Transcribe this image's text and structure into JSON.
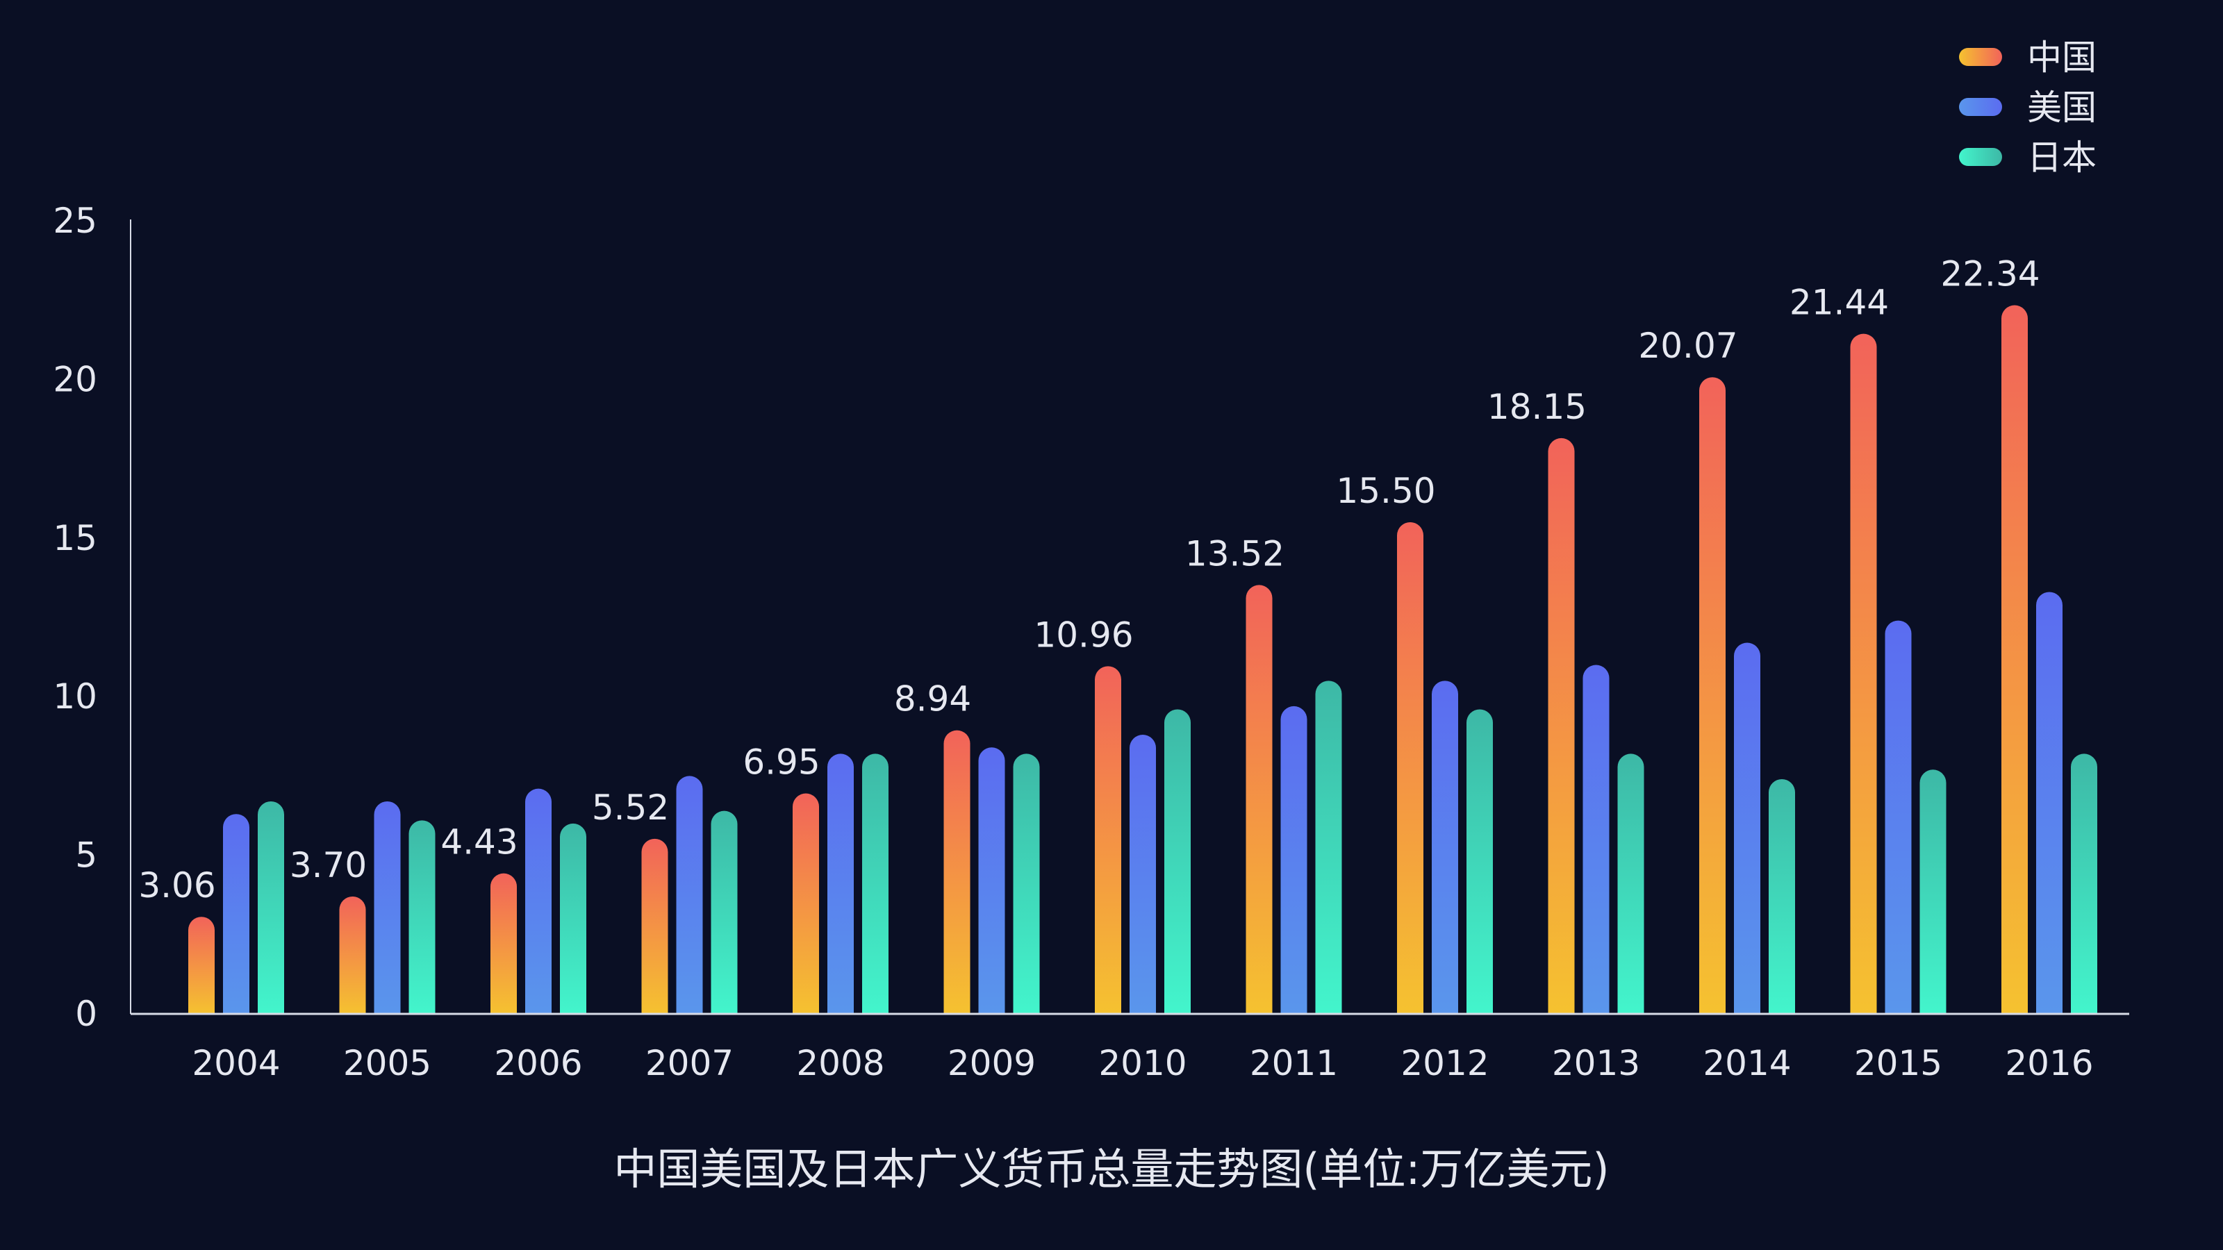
{
  "chart_data": {
    "type": "bar",
    "title": "中国美国及日本广义货币总量走势图(单位:万亿美元)",
    "xlabel": "",
    "ylabel": "",
    "ylim": [
      0,
      25
    ],
    "yticks": [
      0,
      5,
      10,
      15,
      20,
      25
    ],
    "grid": false,
    "legend_position": "top-right",
    "categories": [
      "2004",
      "2005",
      "2006",
      "2007",
      "2008",
      "2009",
      "2010",
      "2011",
      "2012",
      "2013",
      "2014",
      "2015",
      "2016"
    ],
    "series": [
      {
        "name": "中国",
        "values": [
          3.06,
          3.7,
          4.43,
          5.52,
          6.95,
          8.94,
          10.96,
          13.52,
          15.5,
          18.15,
          20.07,
          21.44,
          22.34
        ],
        "data_labels": [
          "3.06",
          "3.70",
          "4.43",
          "5.52",
          "6.95",
          "8.94",
          "10.96",
          "13.52",
          "15.50",
          "18.15",
          "20.07",
          "21.44",
          "22.34"
        ],
        "color_top": "#f2635a",
        "color_bottom": "#f5c230"
      },
      {
        "name": "美国",
        "values": [
          6.3,
          6.7,
          7.1,
          7.5,
          8.2,
          8.4,
          8.8,
          9.7,
          10.5,
          11.0,
          11.7,
          12.4,
          13.3
        ],
        "color_top": "#5b6cf0",
        "color_bottom": "#5a96ec"
      },
      {
        "name": "日本",
        "values": [
          6.7,
          6.1,
          6.0,
          6.4,
          8.2,
          8.2,
          9.6,
          10.5,
          9.6,
          8.2,
          7.4,
          7.7,
          8.2
        ],
        "color_top": "#3db8a6",
        "color_bottom": "#43f5cc"
      }
    ]
  },
  "colors": {
    "background": "#0a0f24",
    "axis": "#d8dbe6",
    "text": "#e6e8f0"
  }
}
